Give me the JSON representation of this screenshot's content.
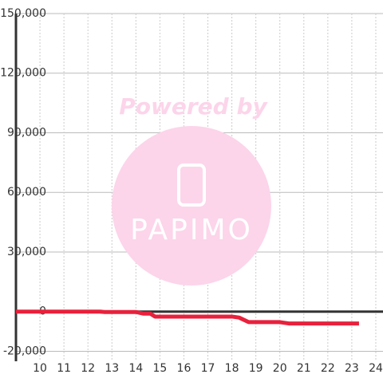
{
  "chart_data": {
    "type": "line",
    "watermark": {
      "title": "Powered by",
      "brand": "PAPIMO"
    },
    "x": [
      9,
      12.5,
      12.7,
      14,
      14.3,
      14.6,
      14.8,
      18,
      18.3,
      18.7,
      20,
      20.4,
      23.3
    ],
    "series": [
      {
        "color": "#e8213c",
        "values": [
          0,
          0,
          -200,
          -200,
          -1000,
          -1000,
          -2500,
          -2500,
          -3000,
          -5300,
          -5300,
          -6000,
          -6000
        ]
      }
    ],
    "xlim": [
      9,
      24.3
    ],
    "xticks": [
      10,
      11,
      12,
      13,
      14,
      15,
      16,
      17,
      18,
      19,
      20,
      21,
      22,
      23,
      24
    ],
    "ylim": [
      -25000,
      150000
    ],
    "yticks": [
      {
        "value": -20000,
        "label": "-20,000"
      },
      0,
      {
        "value": 30000,
        "label": "30,000"
      },
      {
        "value": 60000,
        "label": "60,000"
      },
      {
        "value": 90000,
        "label": "90,000"
      },
      {
        "value": 120000,
        "label": "120,000"
      },
      {
        "value": 150000,
        "label": "150,000"
      }
    ],
    "grid": true
  }
}
